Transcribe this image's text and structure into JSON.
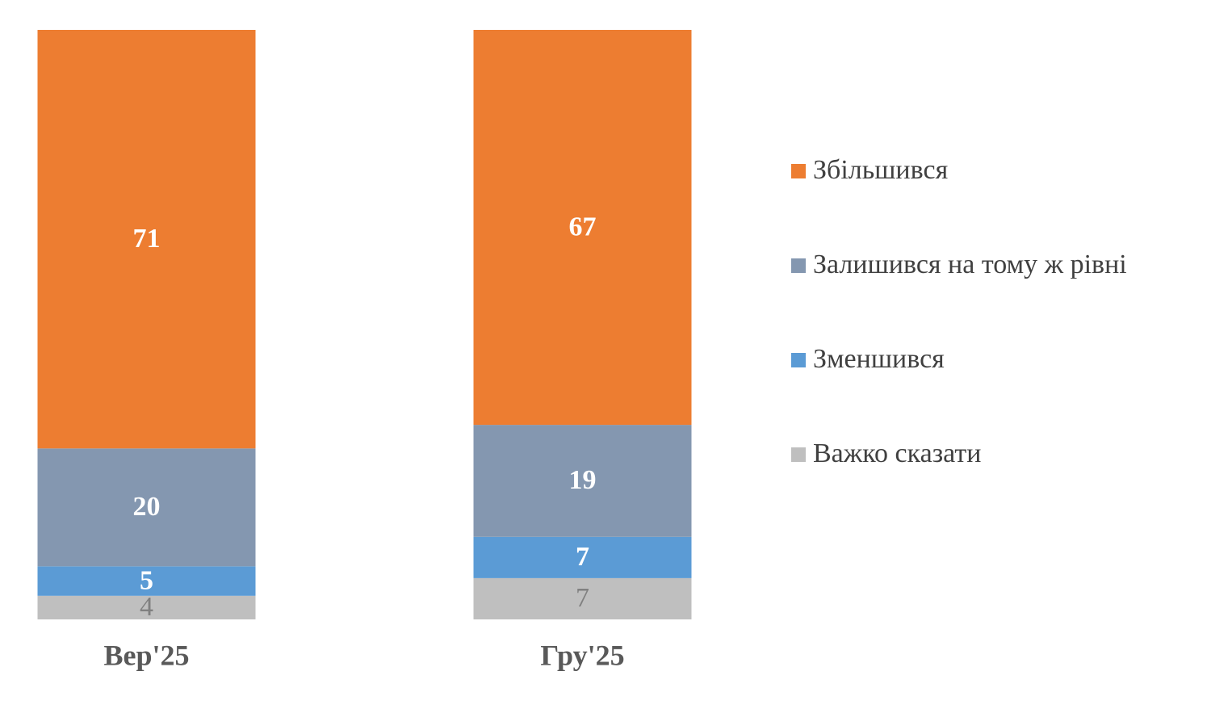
{
  "chart_data": {
    "type": "stacked-bar",
    "categories": [
      "Вер'25",
      "Гру'25"
    ],
    "series": [
      {
        "name": "Збільшився",
        "color": "#ED7D31",
        "values": [
          71,
          67
        ]
      },
      {
        "name": "Залишився на тому ж рівні",
        "color": "#8497B0",
        "values": [
          20,
          19
        ]
      },
      {
        "name": "Зменшився",
        "color": "#5B9BD5",
        "values": [
          5,
          7
        ]
      },
      {
        "name": "Важко сказати",
        "color": "#BFBFBF",
        "values": [
          4,
          7
        ]
      }
    ],
    "legend": "right"
  }
}
